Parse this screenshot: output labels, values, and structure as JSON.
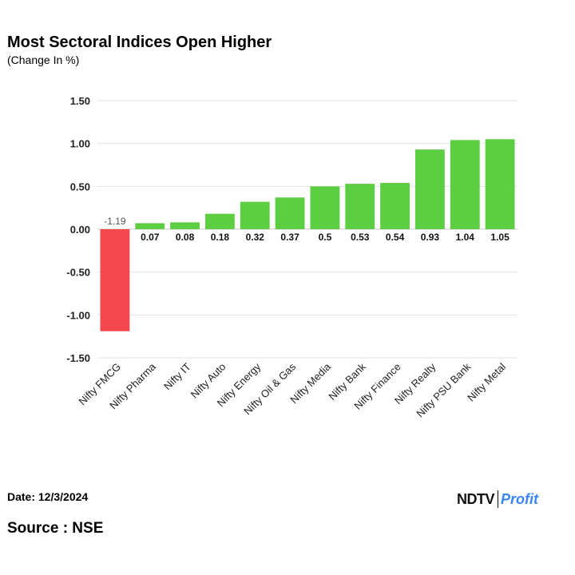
{
  "chart_data": {
    "type": "bar",
    "title": "Most Sectoral Indices Open Higher",
    "subtitle": "(Change In %)",
    "xlabel": "",
    "ylabel": "",
    "ylim": [
      -1.5,
      1.5
    ],
    "yticks": [
      1.5,
      1.0,
      0.5,
      0.0,
      -0.5,
      -1.0,
      -1.5
    ],
    "ytick_labels": [
      "1.50",
      "1.00",
      "0.50",
      "0.00",
      "-0.50",
      "-1.00",
      "-1.50"
    ],
    "grid": true,
    "categories": [
      "Nifty FMCG",
      "Nifty Pharma",
      "Nifty IT",
      "Nifty Auto",
      "Nifty Energy",
      "Nifty Oil & Gas",
      "Nifty Media",
      "Nifty Bank",
      "Nifty Finance",
      "Nifty Realty",
      "Nifty PSU Bank",
      "Nifty Metal"
    ],
    "values": [
      -1.19,
      0.07,
      0.08,
      0.18,
      0.32,
      0.37,
      0.5,
      0.53,
      0.54,
      0.93,
      1.04,
      1.05
    ],
    "value_labels": [
      "-1.19",
      "0.07",
      "0.08",
      "0.18",
      "0.32",
      "0.37",
      "0.5",
      "0.53",
      "0.54",
      "0.93",
      "1.04",
      "1.05"
    ],
    "colors": {
      "positive": "#5dce42",
      "negative": "#f5474e",
      "grid": "#e2e2e2",
      "axis": "#c8c8c8"
    }
  },
  "footer": {
    "date": "Date: 12/3/2024",
    "source": "Source : NSE",
    "brand_primary": "NDTV",
    "brand_secondary": "Profit"
  }
}
